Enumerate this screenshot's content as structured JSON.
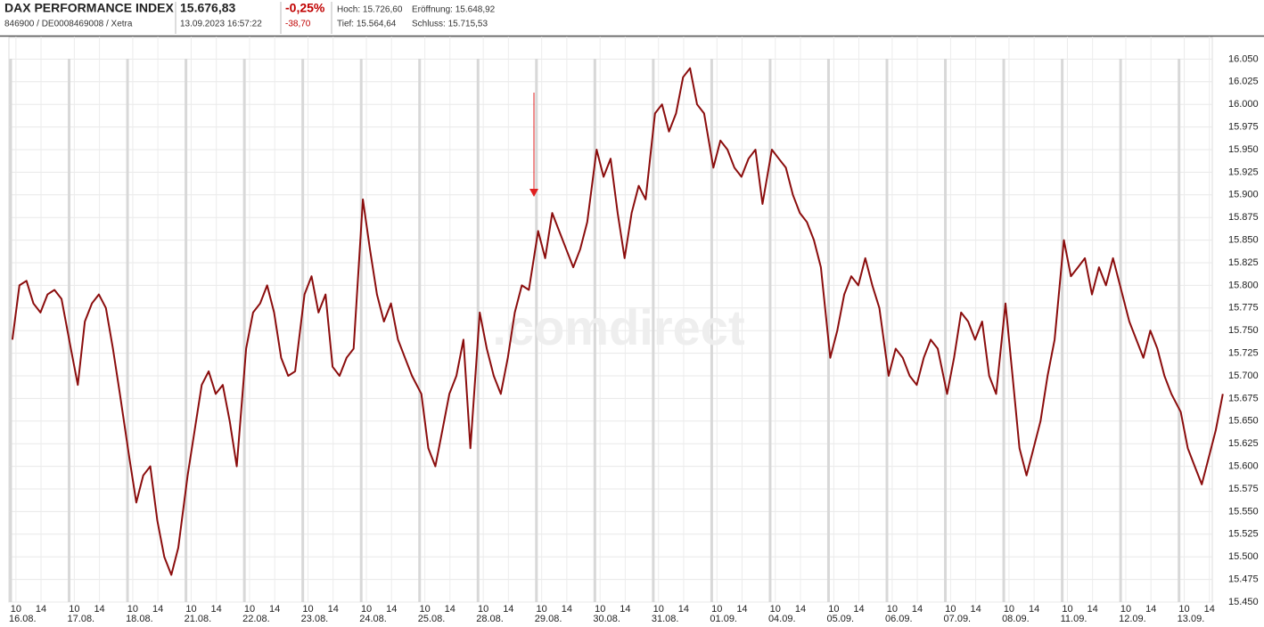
{
  "header": {
    "name": "DAX PERFORMANCE INDEX",
    "ids": "846900 / DE0008469008 / Xetra",
    "price": "15.676,83",
    "time": "13.09.2023 16:57:22",
    "change_pct": "-0,25%",
    "change_abs": "-38,70",
    "high": "Hoch: 15.726,60",
    "open": "Eröffnung: 15.648,92",
    "low": "Tief: 15.564,64",
    "close": "Schluss: 15.715,53"
  },
  "chart_data": {
    "type": "line",
    "watermark": ".comdirect",
    "grid": true,
    "xlim": [
      0,
      20.6
    ],
    "ylim": [
      15450,
      16075
    ],
    "yticks": [
      {
        "value": 15450,
        "label": "15.450"
      },
      {
        "value": 15475,
        "label": "15.475"
      },
      {
        "value": 15500,
        "label": "15.500"
      },
      {
        "value": 15525,
        "label": "15.525"
      },
      {
        "value": 15550,
        "label": "15.550"
      },
      {
        "value": 15575,
        "label": "15.575"
      },
      {
        "value": 15600,
        "label": "15.600"
      },
      {
        "value": 15625,
        "label": "15.625"
      },
      {
        "value": 15650,
        "label": "15.650"
      },
      {
        "value": 15675,
        "label": "15.675"
      },
      {
        "value": 15700,
        "label": "15.700"
      },
      {
        "value": 15725,
        "label": "15.725"
      },
      {
        "value": 15750,
        "label": "15.750"
      },
      {
        "value": 15775,
        "label": "15.775"
      },
      {
        "value": 15800,
        "label": "15.800"
      },
      {
        "value": 15825,
        "label": "15.825"
      },
      {
        "value": 15850,
        "label": "15.850"
      },
      {
        "value": 15875,
        "label": "15.875"
      },
      {
        "value": 15900,
        "label": "15.900"
      },
      {
        "value": 15925,
        "label": "15.925"
      },
      {
        "value": 15950,
        "label": "15.950"
      },
      {
        "value": 15975,
        "label": "15.975"
      },
      {
        "value": 16000,
        "label": "16.000"
      },
      {
        "value": 16025,
        "label": "16.025"
      },
      {
        "value": 16050,
        "label": "16.050"
      }
    ],
    "xticks": [
      {
        "value": 0,
        "label": "16.08."
      },
      {
        "value": 1,
        "label": "17.08."
      },
      {
        "value": 2,
        "label": "18.08."
      },
      {
        "value": 3,
        "label": "21.08."
      },
      {
        "value": 4,
        "label": "22.08."
      },
      {
        "value": 5,
        "label": "23.08."
      },
      {
        "value": 6,
        "label": "24.08."
      },
      {
        "value": 7,
        "label": "25.08."
      },
      {
        "value": 8,
        "label": "28.08."
      },
      {
        "value": 9,
        "label": "29.08."
      },
      {
        "value": 10,
        "label": "30.08."
      },
      {
        "value": 11,
        "label": "31.08."
      },
      {
        "value": 12,
        "label": "01.09."
      },
      {
        "value": 13,
        "label": "04.09."
      },
      {
        "value": 14,
        "label": "05.09."
      },
      {
        "value": 15,
        "label": "06.09."
      },
      {
        "value": 16,
        "label": "07.09."
      },
      {
        "value": 17,
        "label": "08.09."
      },
      {
        "value": 18,
        "label": "11.09."
      },
      {
        "value": 19,
        "label": "12.09."
      },
      {
        "value": 20,
        "label": "13.09."
      }
    ],
    "hour_ticks": [
      {
        "value": 0.12,
        "label": "10"
      },
      {
        "value": 0.55,
        "label": "14"
      },
      {
        "value": 1.12,
        "label": "10"
      },
      {
        "value": 1.55,
        "label": "14"
      },
      {
        "value": 2.12,
        "label": "10"
      },
      {
        "value": 2.55,
        "label": "14"
      },
      {
        "value": 3.12,
        "label": "10"
      },
      {
        "value": 3.55,
        "label": "14"
      },
      {
        "value": 4.12,
        "label": "10"
      },
      {
        "value": 4.55,
        "label": "14"
      },
      {
        "value": 5.12,
        "label": "10"
      },
      {
        "value": 5.55,
        "label": "14"
      },
      {
        "value": 6.12,
        "label": "10"
      },
      {
        "value": 6.55,
        "label": "14"
      },
      {
        "value": 7.12,
        "label": "10"
      },
      {
        "value": 7.55,
        "label": "14"
      },
      {
        "value": 8.12,
        "label": "10"
      },
      {
        "value": 8.55,
        "label": "14"
      },
      {
        "value": 9.12,
        "label": "10"
      },
      {
        "value": 9.55,
        "label": "14"
      },
      {
        "value": 10.12,
        "label": "10"
      },
      {
        "value": 10.55,
        "label": "14"
      },
      {
        "value": 11.12,
        "label": "10"
      },
      {
        "value": 11.55,
        "label": "14"
      },
      {
        "value": 12.12,
        "label": "10"
      },
      {
        "value": 12.55,
        "label": "14"
      },
      {
        "value": 13.12,
        "label": "10"
      },
      {
        "value": 13.55,
        "label": "14"
      },
      {
        "value": 14.12,
        "label": "10"
      },
      {
        "value": 14.55,
        "label": "14"
      },
      {
        "value": 15.12,
        "label": "10"
      },
      {
        "value": 15.55,
        "label": "14"
      },
      {
        "value": 16.12,
        "label": "10"
      },
      {
        "value": 16.55,
        "label": "14"
      },
      {
        "value": 17.12,
        "label": "10"
      },
      {
        "value": 17.55,
        "label": "14"
      },
      {
        "value": 18.12,
        "label": "10"
      },
      {
        "value": 18.55,
        "label": "14"
      },
      {
        "value": 19.12,
        "label": "10"
      },
      {
        "value": 19.55,
        "label": "14"
      },
      {
        "value": 20.12,
        "label": "10"
      },
      {
        "value": 20.55,
        "label": "14"
      }
    ],
    "color": "#8b0d0d",
    "x": [
      0.06,
      0.18,
      0.3,
      0.42,
      0.54,
      0.66,
      0.78,
      0.9,
      1.06,
      1.18,
      1.3,
      1.42,
      1.54,
      1.66,
      1.78,
      1.9,
      2.06,
      2.18,
      2.3,
      2.42,
      2.54,
      2.66,
      2.78,
      2.9,
      3.06,
      3.18,
      3.3,
      3.42,
      3.54,
      3.66,
      3.78,
      3.9,
      4.06,
      4.18,
      4.3,
      4.42,
      4.54,
      4.66,
      4.78,
      4.9,
      5.06,
      5.18,
      5.3,
      5.42,
      5.54,
      5.66,
      5.78,
      5.9,
      6.06,
      6.18,
      6.3,
      6.42,
      6.54,
      6.66,
      6.78,
      6.9,
      7.06,
      7.18,
      7.3,
      7.42,
      7.54,
      7.66,
      7.78,
      7.9,
      8.06,
      8.18,
      8.3,
      8.42,
      8.54,
      8.66,
      8.78,
      8.9,
      9.06,
      9.18,
      9.3,
      9.42,
      9.54,
      9.66,
      9.78,
      9.9,
      10.06,
      10.18,
      10.3,
      10.42,
      10.54,
      10.66,
      10.78,
      10.9,
      11.06,
      11.18,
      11.3,
      11.42,
      11.54,
      11.66,
      11.78,
      11.9,
      12.06,
      12.18,
      12.3,
      12.42,
      12.54,
      12.66,
      12.78,
      12.9,
      13.06,
      13.18,
      13.3,
      13.42,
      13.54,
      13.66,
      13.78,
      13.9,
      14.06,
      14.18,
      14.3,
      14.42,
      14.54,
      14.66,
      14.78,
      14.9,
      15.06,
      15.18,
      15.3,
      15.42,
      15.54,
      15.66,
      15.78,
      15.9,
      16.06,
      16.18,
      16.3,
      16.42,
      16.54,
      16.66,
      16.78,
      16.9,
      17.06,
      17.18,
      17.3,
      17.42,
      17.54,
      17.66,
      17.78,
      17.9,
      18.06,
      18.18,
      18.3,
      18.42,
      18.54,
      18.66,
      18.78,
      18.9,
      19.06,
      19.18,
      19.3,
      19.42,
      19.54,
      19.66,
      19.78,
      19.9,
      20.06,
      20.18,
      20.3,
      20.42,
      20.54,
      20.66,
      20.78
    ],
    "values": [
      15740,
      15800,
      15805,
      15780,
      15770,
      15790,
      15795,
      15785,
      15730,
      15690,
      15760,
      15780,
      15790,
      15775,
      15730,
      15680,
      15610,
      15560,
      15590,
      15600,
      15540,
      15500,
      15480,
      15510,
      15590,
      15640,
      15690,
      15705,
      15680,
      15690,
      15650,
      15600,
      15730,
      15770,
      15780,
      15800,
      15770,
      15720,
      15700,
      15705,
      15790,
      15810,
      15770,
      15790,
      15710,
      15700,
      15720,
      15730,
      15895,
      15840,
      15790,
      15760,
      15780,
      15740,
      15720,
      15700,
      15680,
      15620,
      15600,
      15640,
      15680,
      15700,
      15740,
      15620,
      15770,
      15730,
      15700,
      15680,
      15720,
      15770,
      15800,
      15795,
      15860,
      15830,
      15880,
      15860,
      15840,
      15820,
      15840,
      15870,
      15950,
      15920,
      15940,
      15880,
      15830,
      15880,
      15910,
      15895,
      15990,
      16000,
      15970,
      15990,
      16030,
      16040,
      16000,
      15990,
      15930,
      15960,
      15950,
      15930,
      15920,
      15940,
      15950,
      15890,
      15950,
      15940,
      15930,
      15900,
      15880,
      15870,
      15850,
      15820,
      15720,
      15750,
      15790,
      15810,
      15800,
      15830,
      15800,
      15775,
      15700,
      15730,
      15720,
      15700,
      15690,
      15720,
      15740,
      15730,
      15680,
      15720,
      15770,
      15760,
      15740,
      15760,
      15700,
      15680,
      15780,
      15700,
      15620,
      15590,
      15620,
      15650,
      15700,
      15740,
      15850,
      15810,
      15820,
      15830,
      15790,
      15820,
      15800,
      15830,
      15790,
      15760,
      15740,
      15720,
      15750,
      15730,
      15700,
      15680,
      15660,
      15620,
      15600,
      15580,
      15610,
      15640,
      15680
    ]
  }
}
